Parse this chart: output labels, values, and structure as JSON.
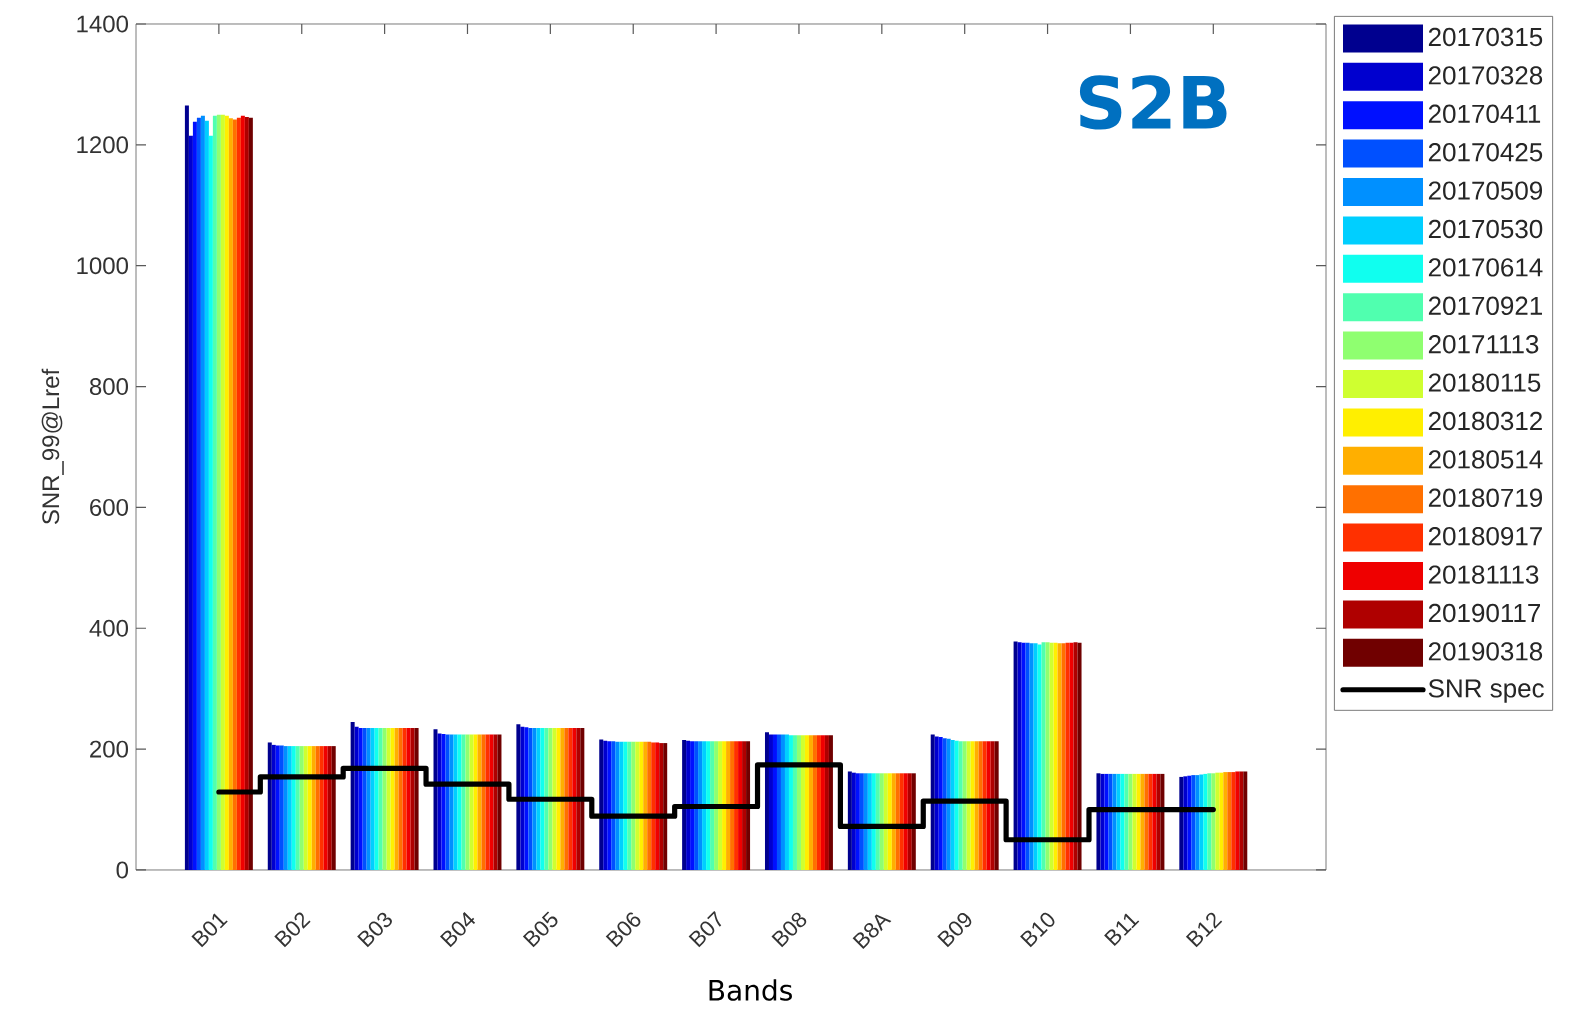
{
  "chart_data": {
    "type": "bar",
    "categories": [
      "B01",
      "B02",
      "B03",
      "B04",
      "B05",
      "B06",
      "B07",
      "B08",
      "B8A",
      "B09",
      "B10",
      "B11",
      "B12"
    ],
    "xlabel": "Bands",
    "ylabel": "SNR_99@Lref",
    "ylim": [
      0,
      1400
    ],
    "yticks": [
      0,
      200,
      400,
      600,
      800,
      1000,
      1200,
      1400
    ],
    "legend": "right",
    "annotations": [
      "S2B"
    ],
    "series": [
      {
        "name": "20170315",
        "color": "#00008f",
        "values": [
          1265,
          211,
          245,
          233,
          241,
          216,
          215,
          228,
          163,
          224,
          378,
          160,
          154
        ]
      },
      {
        "name": "20170328",
        "color": "#0000cf",
        "values": [
          1215,
          207,
          237,
          226,
          237,
          214,
          214,
          224,
          161,
          221,
          377,
          159,
          155
        ]
      },
      {
        "name": "20170411",
        "color": "#0010ff",
        "values": [
          1238,
          206,
          235,
          225,
          236,
          213,
          213,
          224,
          160,
          220,
          376,
          159,
          156
        ]
      },
      {
        "name": "20170425",
        "color": "#0050ff",
        "values": [
          1245,
          206,
          235,
          224,
          235,
          213,
          213,
          224,
          160,
          218,
          376,
          159,
          157
        ]
      },
      {
        "name": "20170509",
        "color": "#0090ff",
        "values": [
          1248,
          205,
          235,
          224,
          235,
          212,
          213,
          224,
          160,
          217,
          375,
          159,
          157
        ]
      },
      {
        "name": "20170530",
        "color": "#00cfff",
        "values": [
          1240,
          205,
          235,
          224,
          235,
          212,
          213,
          224,
          160,
          215,
          375,
          159,
          158
        ]
      },
      {
        "name": "20170614",
        "color": "#10ffef",
        "values": [
          1215,
          205,
          235,
          224,
          235,
          212,
          213,
          223,
          160,
          214,
          373,
          159,
          159
        ]
      },
      {
        "name": "20170921",
        "color": "#50ffaf",
        "values": [
          1248,
          205,
          235,
          224,
          235,
          212,
          213,
          223,
          160,
          213,
          377,
          159,
          160
        ]
      },
      {
        "name": "20171113",
        "color": "#8fff70",
        "values": [
          1250,
          205,
          235,
          224,
          235,
          212,
          213,
          223,
          160,
          213,
          377,
          159,
          160
        ]
      },
      {
        "name": "20180115",
        "color": "#cfff30",
        "values": [
          1250,
          205,
          235,
          224,
          235,
          212,
          213,
          223,
          160,
          213,
          376,
          159,
          161
        ]
      },
      {
        "name": "20180312",
        "color": "#ffef00",
        "values": [
          1248,
          205,
          235,
          224,
          235,
          212,
          213,
          223,
          160,
          213,
          376,
          159,
          161
        ]
      },
      {
        "name": "20180514",
        "color": "#ffaf00",
        "values": [
          1244,
          205,
          235,
          224,
          235,
          212,
          213,
          223,
          160,
          213,
          375,
          159,
          162
        ]
      },
      {
        "name": "20180719",
        "color": "#ff7000",
        "values": [
          1242,
          205,
          235,
          224,
          235,
          212,
          213,
          223,
          160,
          213,
          375,
          159,
          162
        ]
      },
      {
        "name": "20180917",
        "color": "#ff3000",
        "values": [
          1245,
          205,
          235,
          224,
          235,
          211,
          213,
          223,
          160,
          213,
          376,
          159,
          162
        ]
      },
      {
        "name": "20181113",
        "color": "#ef0000",
        "values": [
          1248,
          205,
          235,
          224,
          235,
          211,
          213,
          223,
          160,
          213,
          376,
          159,
          163
        ]
      },
      {
        "name": "20190117",
        "color": "#af0000",
        "values": [
          1246,
          205,
          235,
          224,
          235,
          210,
          213,
          223,
          160,
          213,
          377,
          159,
          163
        ]
      },
      {
        "name": "20190318",
        "color": "#700000",
        "values": [
          1245,
          205,
          235,
          224,
          235,
          210,
          213,
          223,
          160,
          213,
          376,
          159,
          163
        ]
      },
      {
        "name": "SNR spec",
        "type": "step",
        "color": "#000000",
        "values": [
          129,
          154,
          168,
          142,
          117,
          89,
          105,
          174,
          72,
          114,
          50,
          100,
          100
        ]
      }
    ]
  }
}
